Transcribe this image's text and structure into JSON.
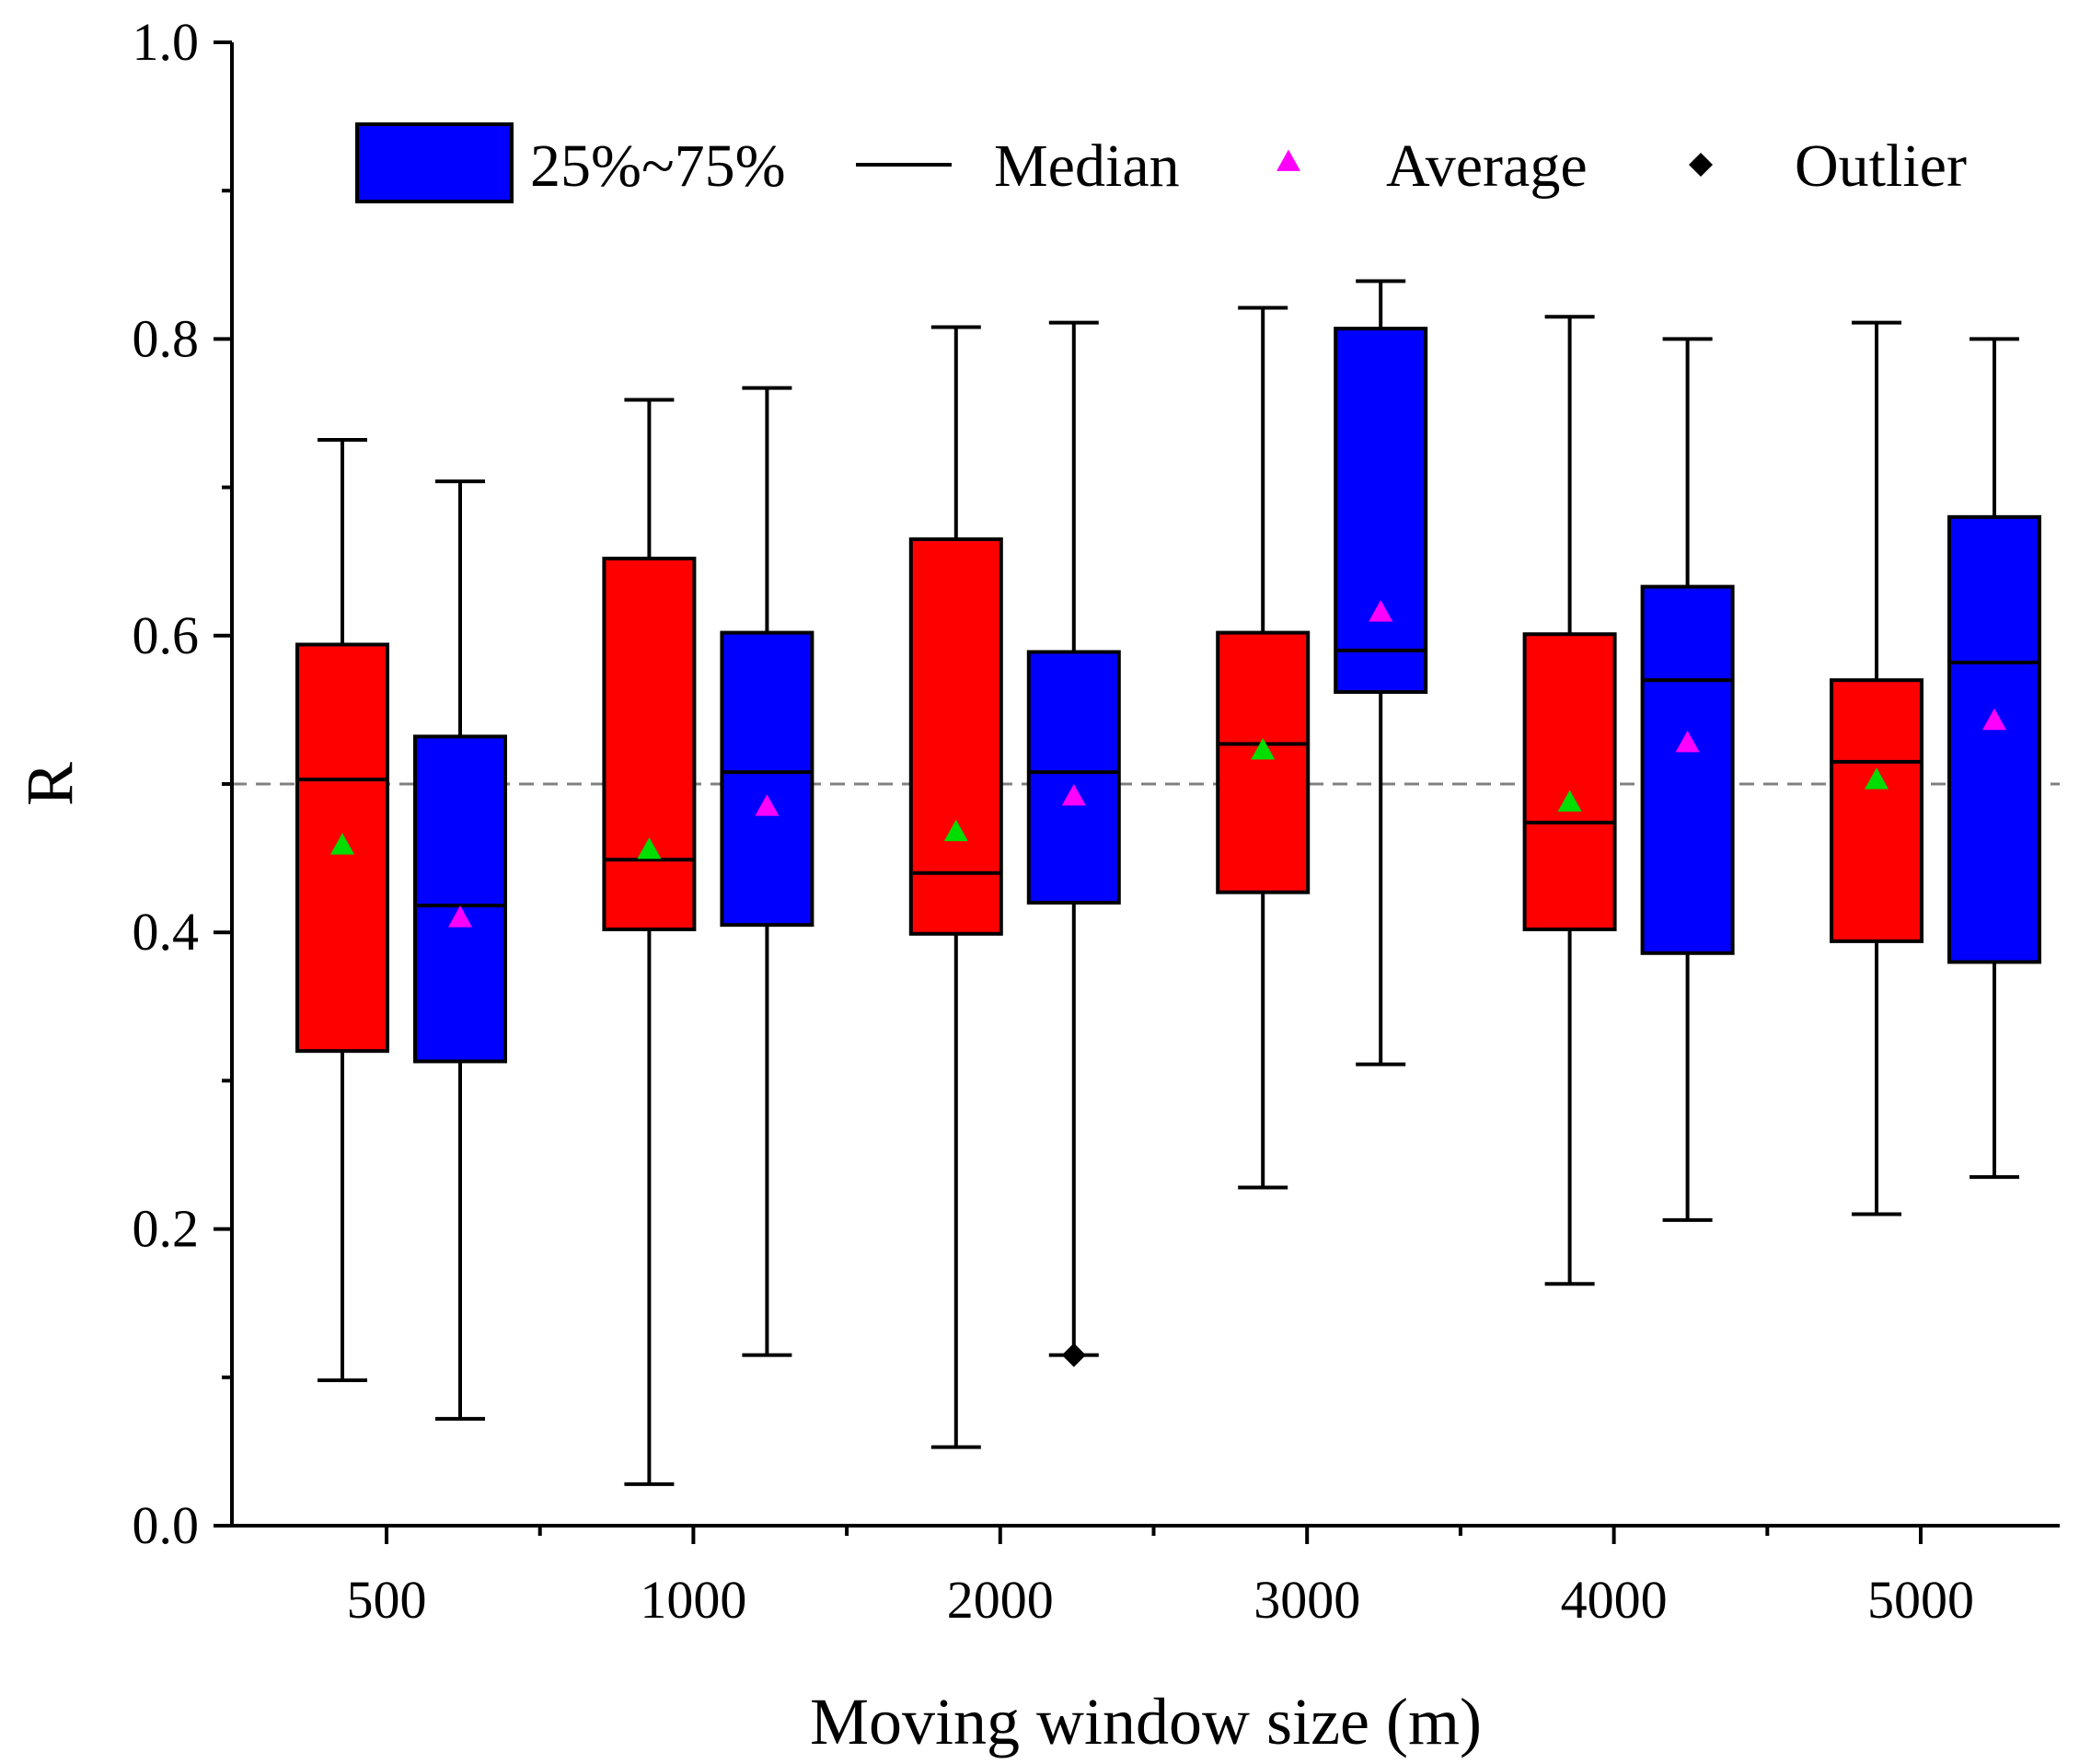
{
  "chart_data": {
    "type": "box",
    "title": "",
    "xlabel": "Moving window size (m)",
    "ylabel": "R",
    "ylim": [
      0,
      1.0
    ],
    "yticks": [
      "0.0",
      "0.2",
      "0.4",
      "0.6",
      "0.8",
      "1.0"
    ],
    "categories": [
      "500",
      "1000",
      "2000",
      "3000",
      "4000",
      "5000"
    ],
    "reference_line": 0.5,
    "grid": false,
    "legend_position": "top",
    "legend": {
      "box": "25%~75%",
      "median": "Median",
      "average": "Average",
      "outlier": "Outlier"
    },
    "colors": {
      "series_a": "#ff0000",
      "series_b": "#0000ff",
      "average_a": "#00dd00",
      "average_b": "#ff00ff",
      "outlier": "#000000",
      "reference_line": "#808080"
    },
    "series": [
      {
        "boxes": [
          {
            "category": "500",
            "min": 0.098,
            "q1": 0.32,
            "median": 0.503,
            "q3": 0.594,
            "max": 0.732,
            "mean": 0.458,
            "outliers": []
          },
          {
            "category": "1000",
            "min": 0.028,
            "q1": 0.402,
            "median": 0.449,
            "q3": 0.652,
            "max": 0.759,
            "mean": 0.455,
            "outliers": []
          },
          {
            "category": "2000",
            "min": 0.053,
            "q1": 0.399,
            "median": 0.44,
            "q3": 0.665,
            "max": 0.808,
            "mean": 0.467,
            "outliers": []
          },
          {
            "category": "3000",
            "min": 0.228,
            "q1": 0.427,
            "median": 0.527,
            "q3": 0.602,
            "max": 0.821,
            "mean": 0.522,
            "outliers": []
          },
          {
            "category": "4000",
            "min": 0.163,
            "q1": 0.402,
            "median": 0.474,
            "q3": 0.601,
            "max": 0.815,
            "mean": 0.487,
            "outliers": []
          },
          {
            "category": "5000",
            "min": 0.21,
            "q1": 0.394,
            "median": 0.515,
            "q3": 0.57,
            "max": 0.811,
            "mean": 0.502,
            "outliers": []
          }
        ]
      },
      {
        "boxes": [
          {
            "category": "500",
            "min": 0.072,
            "q1": 0.313,
            "median": 0.418,
            "q3": 0.532,
            "max": 0.704,
            "mean": 0.409,
            "outliers": []
          },
          {
            "category": "1000",
            "min": 0.115,
            "q1": 0.405,
            "median": 0.508,
            "q3": 0.602,
            "max": 0.767,
            "mean": 0.484,
            "outliers": []
          },
          {
            "category": "2000",
            "min": 0.115,
            "q1": 0.42,
            "median": 0.508,
            "q3": 0.589,
            "max": 0.811,
            "mean": 0.491,
            "outliers": [
              0.115
            ]
          },
          {
            "category": "3000",
            "min": 0.311,
            "q1": 0.562,
            "median": 0.59,
            "q3": 0.807,
            "max": 0.839,
            "mean": 0.615,
            "outliers": []
          },
          {
            "category": "4000",
            "min": 0.206,
            "q1": 0.386,
            "median": 0.57,
            "q3": 0.633,
            "max": 0.8,
            "mean": 0.527,
            "outliers": []
          },
          {
            "category": "5000",
            "min": 0.235,
            "q1": 0.38,
            "median": 0.582,
            "q3": 0.68,
            "max": 0.8,
            "mean": 0.542,
            "outliers": []
          }
        ]
      }
    ]
  }
}
